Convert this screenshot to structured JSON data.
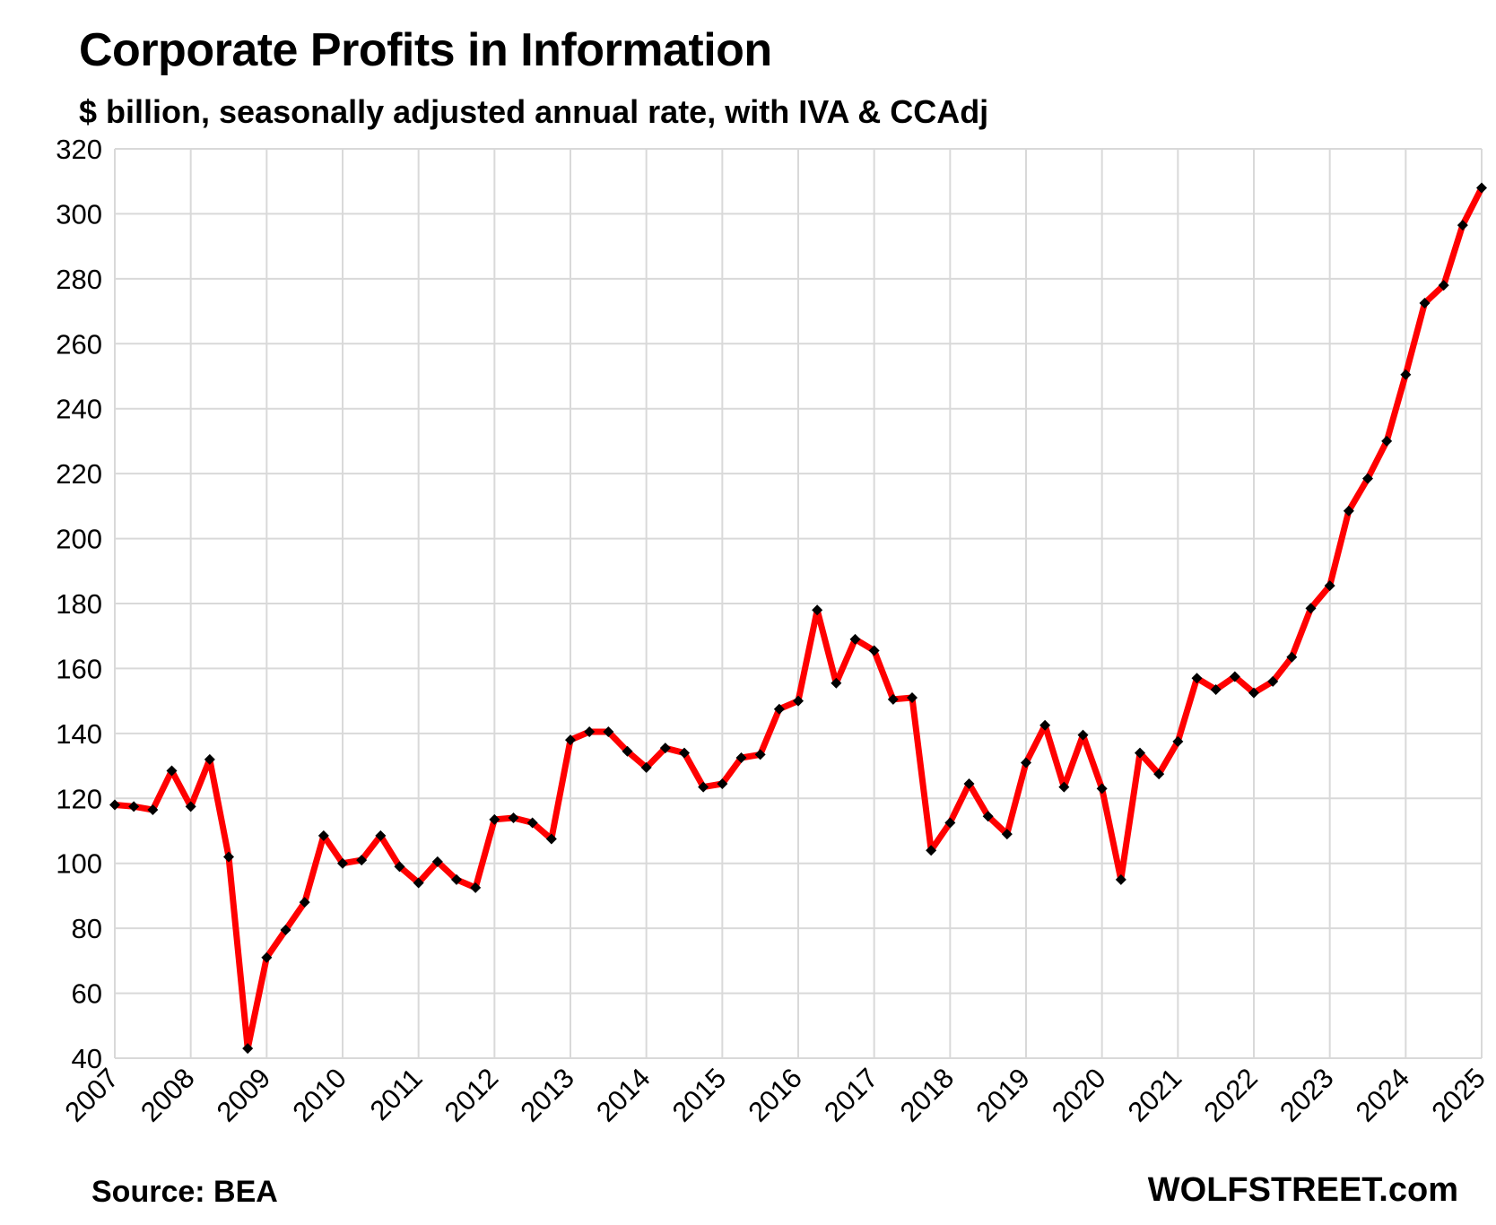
{
  "source": "Source: BEA",
  "brand": "WOLFSTREET.com",
  "colors": {
    "line": "#ff0000",
    "marker": "#000000",
    "grid": "#d9d9d9"
  },
  "chart_data": {
    "type": "line",
    "title": "Corporate Profits in Information",
    "subtitle": "$ billion, seasonally adjusted annual rate, with IVA & CCAdj",
    "xlabel": "",
    "ylabel": "",
    "ylim": [
      40,
      320
    ],
    "yticks": [
      40,
      60,
      80,
      100,
      120,
      140,
      160,
      180,
      200,
      220,
      240,
      260,
      280,
      300,
      320
    ],
    "xrange": [
      2007,
      2025
    ],
    "xticks": [
      "2007",
      "2008",
      "2009",
      "2010",
      "2011",
      "2012",
      "2013",
      "2014",
      "2015",
      "2016",
      "2017",
      "2018",
      "2019",
      "2020",
      "2021",
      "2022",
      "2023",
      "2024",
      "2025"
    ],
    "grid": true,
    "series": [
      {
        "name": "Corporate Profits in Information",
        "x": [
          2007,
          2007.25,
          2007.5,
          2007.75,
          2008,
          2008.25,
          2008.5,
          2008.75,
          2009,
          2009.25,
          2009.5,
          2009.75,
          2010,
          2010.25,
          2010.5,
          2010.75,
          2011,
          2011.25,
          2011.5,
          2011.75,
          2012,
          2012.25,
          2012.5,
          2012.75,
          2013,
          2013.25,
          2013.5,
          2013.75,
          2014,
          2014.25,
          2014.5,
          2014.75,
          2015,
          2015.25,
          2015.5,
          2015.75,
          2016,
          2016.25,
          2016.5,
          2016.75,
          2017,
          2017.25,
          2017.5,
          2017.75,
          2018,
          2018.25,
          2018.5,
          2018.75,
          2019,
          2019.25,
          2019.5,
          2019.75,
          2020,
          2020.25,
          2020.5,
          2020.75,
          2021,
          2021.25,
          2021.5,
          2021.75,
          2022,
          2022.25,
          2022.5,
          2022.75,
          2023,
          2023.25,
          2023.5,
          2023.75,
          2024,
          2024.25,
          2024.5,
          2024.75,
          2025
        ],
        "values": [
          118,
          117.5,
          116.5,
          128.5,
          117.5,
          132,
          102,
          43,
          71,
          79.5,
          88,
          108.5,
          100,
          101,
          108.5,
          99,
          94,
          100.5,
          95,
          92.5,
          113.5,
          114,
          112.5,
          107.5,
          138,
          140.5,
          140.5,
          134.5,
          129.5,
          135.5,
          134,
          123.5,
          124.5,
          132.5,
          133.5,
          147.5,
          150,
          178,
          155.5,
          169,
          165.5,
          150.5,
          151,
          104,
          112.5,
          124.5,
          114.5,
          109,
          131,
          142.5,
          123.5,
          139.5,
          123,
          95,
          134,
          127.5,
          137.5,
          157,
          153.5,
          157.5,
          152.5,
          156,
          163.5,
          178.5,
          185.5,
          208.5,
          218.5,
          230,
          250.5,
          272.5,
          278,
          296.5,
          308
        ]
      }
    ]
  }
}
